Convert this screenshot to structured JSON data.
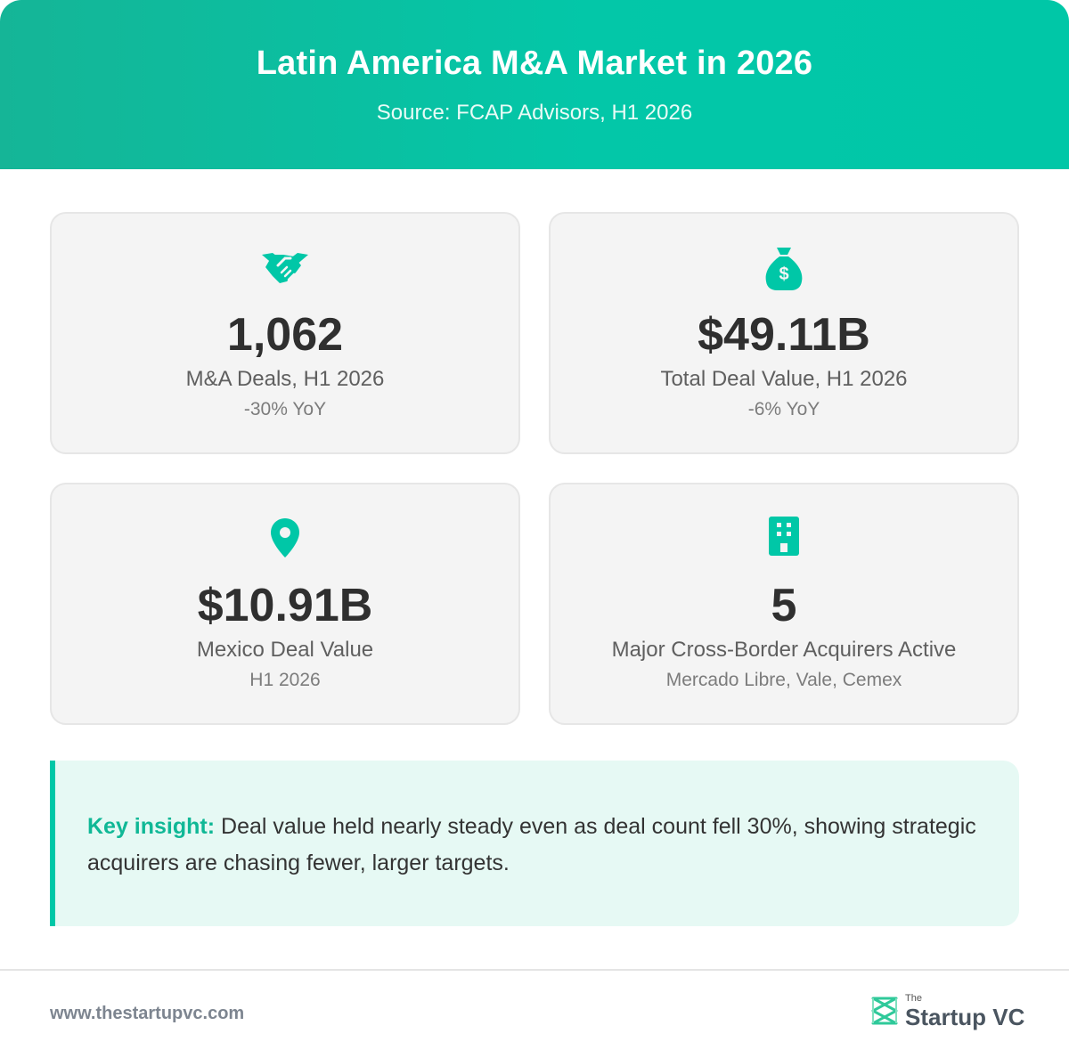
{
  "header": {
    "title": "Latin America M&A Market in 2026",
    "subtitle": "Source: FCAP Advisors, H1 2026"
  },
  "accent_color": "#00c7a7",
  "cards": [
    {
      "icon": "handshake-icon",
      "value": "1,062",
      "label": "M&A Deals, H1 2026",
      "sub": "-30% YoY"
    },
    {
      "icon": "money-bag-icon",
      "value": "$49.11B",
      "label": "Total Deal Value, H1 2026",
      "sub": "-6% YoY"
    },
    {
      "icon": "location-pin-icon",
      "value": "$10.91B",
      "label": "Mexico Deal Value",
      "sub": "H1 2026"
    },
    {
      "icon": "building-icon",
      "value": "5",
      "label": "Major Cross-Border Acquirers Active",
      "sub": "Mercado Libre, Vale, Cemex"
    }
  ],
  "insight": {
    "lead": "Key insight:",
    "text": "Deal value held nearly steady even as deal count fell 30%, showing strategic acquirers are chasing fewer, larger targets."
  },
  "footer": {
    "url": "www.thestartupvc.com",
    "brand_small": "The",
    "brand_name": "Startup VC"
  }
}
